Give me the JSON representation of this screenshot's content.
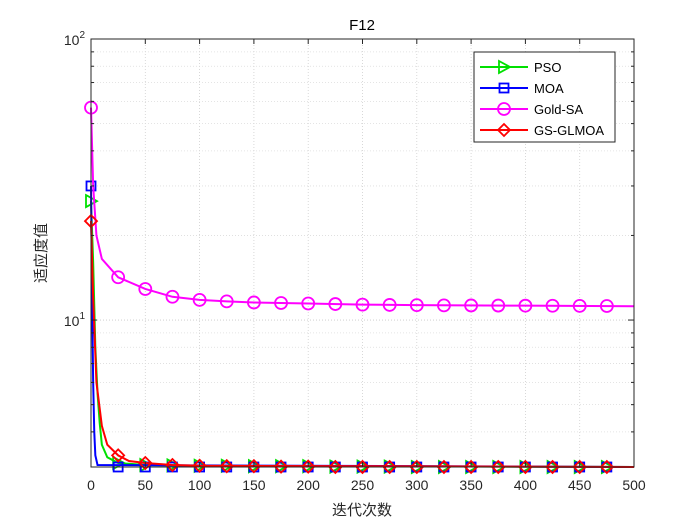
{
  "chart_data": {
    "type": "line",
    "title": "F12",
    "xlabel": "迭代次数",
    "ylabel": "适应度值",
    "xlim": [
      0,
      500
    ],
    "ylim": [
      3,
      100
    ],
    "yscale": "log",
    "grid": true,
    "legend_position": "top-right",
    "xticks": [
      0,
      50,
      100,
      150,
      200,
      250,
      300,
      350,
      400,
      450,
      500
    ],
    "ytick_labels": [
      {
        "base": "10",
        "exp": "1",
        "value": 10
      },
      {
        "base": "10",
        "exp": "2",
        "value": 100
      }
    ],
    "series": [
      {
        "name": "PSO",
        "color": "#00e000",
        "marker": "triangle-right",
        "points": [
          [
            0,
            26.5
          ],
          [
            2,
            16
          ],
          [
            4,
            8
          ],
          [
            6,
            5.5
          ],
          [
            8,
            4.3
          ],
          [
            10,
            3.6
          ],
          [
            15,
            3.25
          ],
          [
            25,
            3.1
          ],
          [
            50,
            3.05
          ],
          [
            100,
            3.03
          ],
          [
            500,
            3.0
          ]
        ],
        "marker_points": [
          [
            0,
            26.5
          ],
          [
            25,
            3.1
          ],
          [
            50,
            3.05
          ],
          [
            75,
            3.04
          ],
          [
            100,
            3.03
          ],
          [
            125,
            3.03
          ],
          [
            150,
            3.02
          ],
          [
            175,
            3.02
          ],
          [
            200,
            3.02
          ],
          [
            225,
            3.01
          ],
          [
            250,
            3.01
          ],
          [
            275,
            3.01
          ],
          [
            300,
            3.0
          ],
          [
            325,
            3.0
          ],
          [
            350,
            3.0
          ],
          [
            375,
            3.0
          ],
          [
            400,
            3.0
          ],
          [
            425,
            3.0
          ],
          [
            450,
            3.0
          ],
          [
            475,
            3.0
          ]
        ]
      },
      {
        "name": "MOA",
        "color": "#0000ff",
        "marker": "square",
        "points": [
          [
            0,
            30
          ],
          [
            1,
            12
          ],
          [
            2,
            6
          ],
          [
            3,
            4
          ],
          [
            4,
            3.3
          ],
          [
            6,
            3.05
          ],
          [
            500,
            3.0
          ]
        ],
        "marker_points": [
          [
            0,
            30
          ],
          [
            25,
            3.0
          ],
          [
            50,
            3.0
          ],
          [
            75,
            3.0
          ],
          [
            100,
            3.0
          ],
          [
            125,
            3.0
          ],
          [
            150,
            3.0
          ],
          [
            175,
            3.0
          ],
          [
            200,
            3.0
          ],
          [
            225,
            3.0
          ],
          [
            250,
            3.0
          ],
          [
            275,
            3.0
          ],
          [
            300,
            3.0
          ],
          [
            325,
            3.0
          ],
          [
            350,
            3.0
          ],
          [
            375,
            3.0
          ],
          [
            400,
            3.0
          ],
          [
            425,
            3.0
          ],
          [
            450,
            3.0
          ],
          [
            475,
            3.0
          ]
        ]
      },
      {
        "name": "Gold-SA",
        "color": "#ff00ff",
        "marker": "circle",
        "points": [
          [
            0,
            57
          ],
          [
            2,
            30
          ],
          [
            5,
            20
          ],
          [
            10,
            16.5
          ],
          [
            25,
            14.2
          ],
          [
            50,
            12.9
          ],
          [
            75,
            12.1
          ],
          [
            100,
            11.8
          ],
          [
            125,
            11.65
          ],
          [
            150,
            11.55
          ],
          [
            175,
            11.5
          ],
          [
            200,
            11.45
          ],
          [
            250,
            11.35
          ],
          [
            300,
            11.3
          ],
          [
            400,
            11.25
          ],
          [
            500,
            11.2
          ]
        ],
        "marker_points": [
          [
            0,
            57
          ],
          [
            25,
            14.2
          ],
          [
            50,
            12.9
          ],
          [
            75,
            12.1
          ],
          [
            100,
            11.8
          ],
          [
            125,
            11.65
          ],
          [
            150,
            11.55
          ],
          [
            175,
            11.5
          ],
          [
            200,
            11.45
          ],
          [
            225,
            11.4
          ],
          [
            250,
            11.35
          ],
          [
            275,
            11.32
          ],
          [
            300,
            11.3
          ],
          [
            325,
            11.28
          ],
          [
            350,
            11.27
          ],
          [
            375,
            11.26
          ],
          [
            400,
            11.25
          ],
          [
            425,
            11.24
          ],
          [
            450,
            11.23
          ],
          [
            475,
            11.22
          ]
        ]
      },
      {
        "name": "GS-GLMOA",
        "color": "#ff0000",
        "marker": "diamond",
        "points": [
          [
            0,
            22.5
          ],
          [
            2,
            12
          ],
          [
            5,
            6
          ],
          [
            10,
            4.2
          ],
          [
            15,
            3.6
          ],
          [
            25,
            3.3
          ],
          [
            35,
            3.15
          ],
          [
            50,
            3.1
          ],
          [
            75,
            3.05
          ],
          [
            100,
            3.03
          ],
          [
            500,
            3.0
          ]
        ],
        "marker_points": [
          [
            0,
            22.5
          ],
          [
            25,
            3.3
          ],
          [
            50,
            3.1
          ],
          [
            75,
            3.05
          ],
          [
            100,
            3.03
          ],
          [
            125,
            3.02
          ],
          [
            150,
            3.02
          ],
          [
            175,
            3.01
          ],
          [
            200,
            3.01
          ],
          [
            225,
            3.0
          ],
          [
            250,
            3.0
          ],
          [
            275,
            3.0
          ],
          [
            300,
            3.0
          ],
          [
            325,
            3.0
          ],
          [
            350,
            3.0
          ],
          [
            375,
            3.0
          ],
          [
            400,
            3.0
          ],
          [
            425,
            3.0
          ],
          [
            450,
            3.0
          ],
          [
            475,
            3.0
          ]
        ]
      }
    ]
  }
}
